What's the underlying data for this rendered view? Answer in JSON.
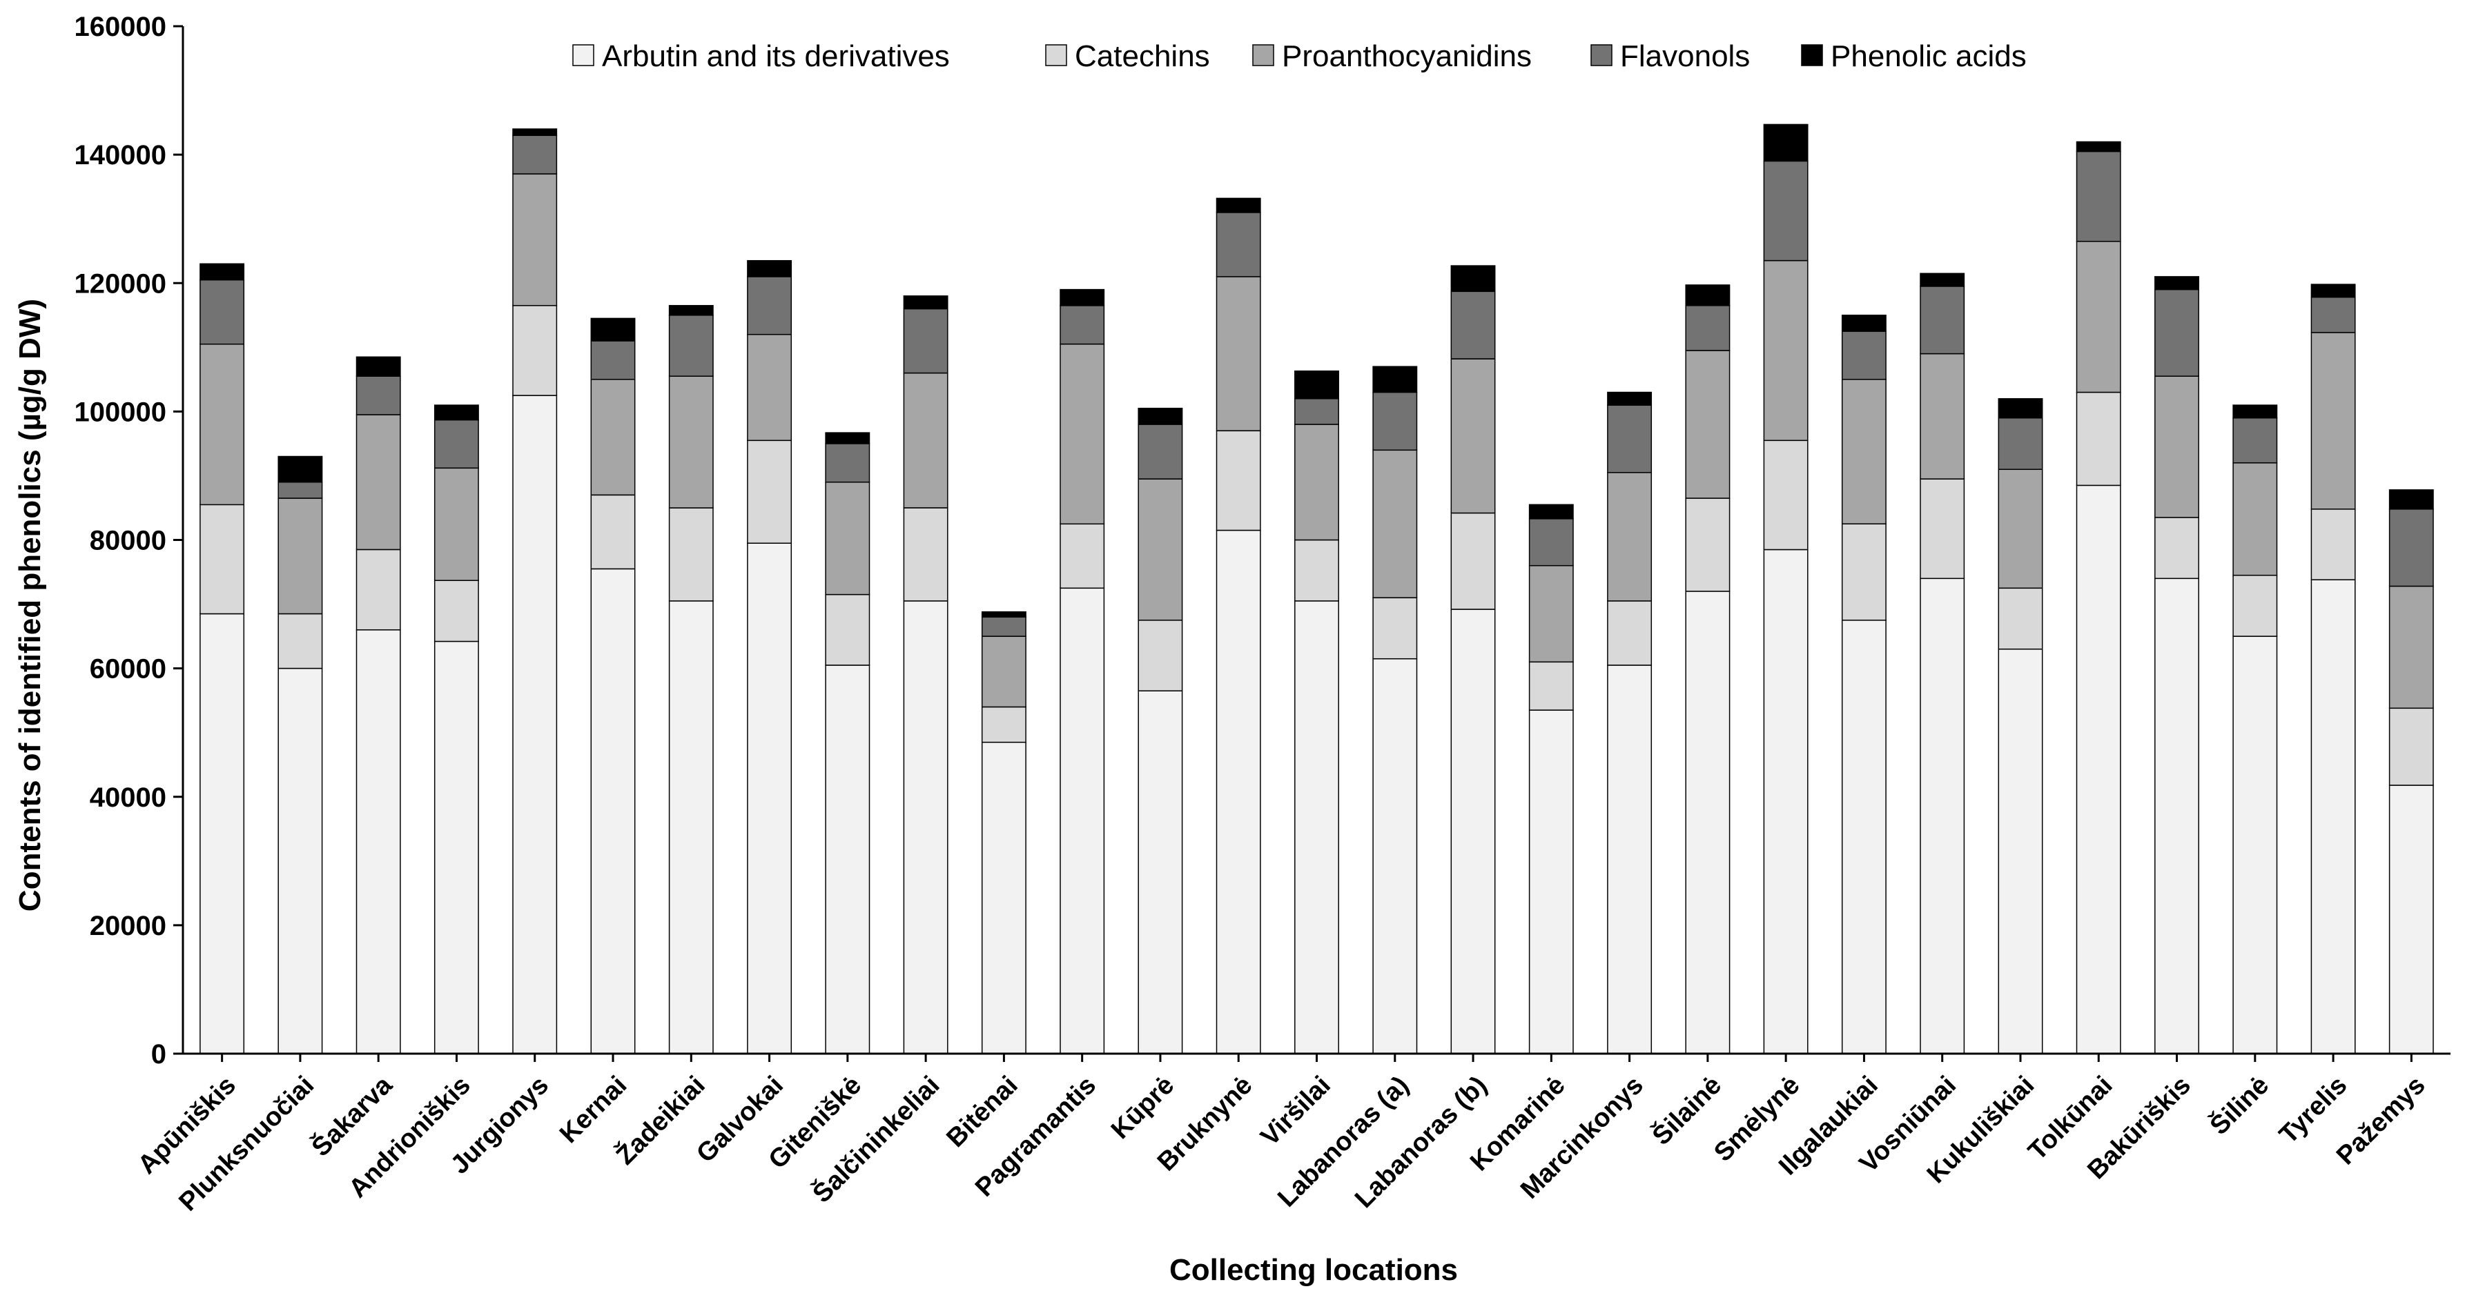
{
  "chart_data": {
    "type": "bar",
    "stacked": true,
    "title": "",
    "xlabel": "Collecting locations",
    "ylabel": "Contents of identified phenolics (µg/g DW)",
    "ylim": [
      0,
      160000
    ],
    "yticks": [
      0,
      20000,
      40000,
      60000,
      80000,
      100000,
      120000,
      140000,
      160000
    ],
    "grid": false,
    "legend_position": "top",
    "categories": [
      "Apūniškis",
      "Plunksnuočiai",
      "Šakarva",
      "Andrioniškis",
      "Jurgionys",
      "Kernai",
      "Žadeikiai",
      "Galvokai",
      "Giteniškė",
      "Šalčininkeliai",
      "Bitėnai",
      "Pagramantis",
      "Kūprė",
      "Bruknynė",
      "Viršilai",
      "Labanoras (a)",
      "Labanoras (b)",
      "Komarinė",
      "Marcinkonys",
      "Šilainė",
      "Smėlynė",
      "Ilgalaukiai",
      "Vosniūnai",
      "Kukuliškiai",
      "Tolkūnai",
      "Bakūriškis",
      "Šilinė",
      "Tyrelis",
      "Pažemys"
    ],
    "series": [
      {
        "name": "Arbutin and its derivatives",
        "color": "#f2f2f2",
        "values": [
          68500,
          60000,
          66000,
          64200,
          102500,
          75500,
          70500,
          79500,
          60500,
          70500,
          48500,
          72500,
          56500,
          81500,
          70500,
          61500,
          69200,
          53500,
          60500,
          72000,
          78500,
          67500,
          74000,
          63000,
          88500,
          74000,
          65000,
          73800,
          41800
        ]
      },
      {
        "name": "Catechins",
        "color": "#d9d9d9",
        "values": [
          17000,
          8500,
          12500,
          9500,
          14000,
          11500,
          14500,
          16000,
          11000,
          14500,
          5500,
          10000,
          11000,
          15500,
          9500,
          9500,
          15000,
          7500,
          10000,
          14500,
          17000,
          15000,
          15500,
          9500,
          14500,
          9500,
          9500,
          11000,
          12000
        ]
      },
      {
        "name": "Proanthocyanidins",
        "color": "#a6a6a6",
        "values": [
          25000,
          18000,
          21000,
          17500,
          20500,
          18000,
          20500,
          16500,
          17500,
          21000,
          11000,
          28000,
          22000,
          24000,
          18000,
          23000,
          24000,
          15000,
          20000,
          23000,
          28000,
          22500,
          19500,
          18500,
          23500,
          22000,
          17500,
          27500,
          19000
        ]
      },
      {
        "name": "Flavonols",
        "color": "#737373",
        "values": [
          10000,
          2500,
          6000,
          7500,
          6000,
          6000,
          9500,
          9000,
          6000,
          10000,
          3000,
          6000,
          8500,
          10000,
          4000,
          9000,
          10500,
          7300,
          10500,
          7000,
          15500,
          7500,
          10500,
          8000,
          14000,
          13500,
          7000,
          5500,
          12000
        ]
      },
      {
        "name": "Phenolic acids",
        "color": "#000000",
        "values": [
          2500,
          4000,
          3000,
          2300,
          1000,
          3500,
          1500,
          2500,
          1700,
          2000,
          800,
          2500,
          2500,
          2200,
          4300,
          4000,
          4000,
          2200,
          2000,
          3200,
          5700,
          2500,
          2000,
          3000,
          1500,
          2000,
          2000,
          2000,
          3000
        ]
      }
    ]
  }
}
